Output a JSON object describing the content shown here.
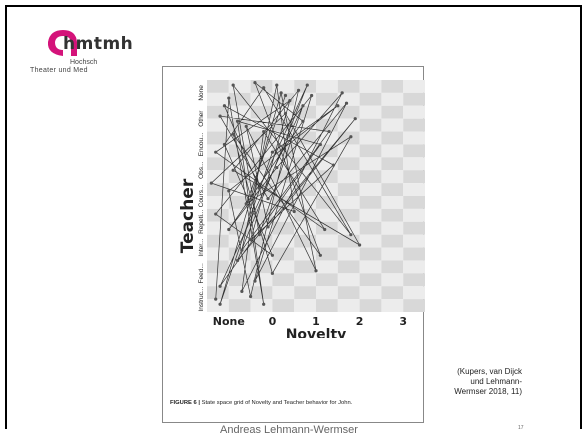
{
  "logo": {
    "text": "hmtmh",
    "line1": "Hochsch",
    "line2": "Theater und Med"
  },
  "figure": {
    "caption_label": "FIGURE 6 |",
    "caption_text": " State space grid of Novelty and Teacher behavior for John."
  },
  "chart_data": {
    "type": "scatter",
    "xlabel": "Novelty",
    "ylabel": "Teacher",
    "x_categories": [
      "None",
      "0",
      "1",
      "2",
      "3"
    ],
    "y_categories": [
      "Instruc...",
      "Feed...",
      "Inter...",
      "Repeti...",
      "Cours...",
      "Obs...",
      "Encou...",
      "Other",
      "None"
    ],
    "grid": "checkerboard",
    "trajectory": [
      [
        0.2,
        0.5
      ],
      [
        0.5,
        8.3
      ],
      [
        1.3,
        0.3
      ],
      [
        0.7,
        7.4
      ],
      [
        2.6,
        6.5
      ],
      [
        0.3,
        1.0
      ],
      [
        2.2,
        8.0
      ],
      [
        1.2,
        3.0
      ],
      [
        0.6,
        8.8
      ],
      [
        3.3,
        3.0
      ],
      [
        1.3,
        8.7
      ],
      [
        0.4,
        6.5
      ],
      [
        1.5,
        2.2
      ],
      [
        0.2,
        3.8
      ],
      [
        2.4,
        8.4
      ],
      [
        1.1,
        1.2
      ],
      [
        3.2,
        8.1
      ],
      [
        1.4,
        4.4
      ],
      [
        0.3,
        7.6
      ],
      [
        2.8,
        7.0
      ],
      [
        0.8,
        2.4
      ],
      [
        1.6,
        8.8
      ],
      [
        2.0,
        3.9
      ],
      [
        0.1,
        5.0
      ],
      [
        1.8,
        7.7
      ],
      [
        3.5,
        2.6
      ],
      [
        0.6,
        5.5
      ],
      [
        2.1,
        8.6
      ],
      [
        1.0,
        0.6
      ],
      [
        0.5,
        4.7
      ],
      [
        3.0,
        8.0
      ],
      [
        1.5,
        6.2
      ],
      [
        0.3,
        0.3
      ],
      [
        1.7,
        8.5
      ],
      [
        2.5,
        1.6
      ],
      [
        0.9,
        7.2
      ],
      [
        1.4,
        3.3
      ],
      [
        3.4,
        7.5
      ],
      [
        0.7,
        2.0
      ],
      [
        2.3,
        8.8
      ],
      [
        1.2,
        4.8
      ],
      [
        0.4,
        8.0
      ],
      [
        2.9,
        5.7
      ],
      [
        1.0,
        2.8
      ],
      [
        1.9,
        8.2
      ],
      [
        0.2,
        6.2
      ],
      [
        2.7,
        3.2
      ],
      [
        1.3,
        7.0
      ],
      [
        0.8,
        0.8
      ],
      [
        3.1,
        8.5
      ],
      [
        1.6,
        5.6
      ],
      [
        0.5,
        3.2
      ],
      [
        2.2,
        7.4
      ],
      [
        1.1,
        8.9
      ],
      [
        2.6,
        2.2
      ],
      [
        0.6,
        6.9
      ],
      [
        1.5,
        1.5
      ],
      [
        3.3,
        6.8
      ],
      [
        0.9,
        4.2
      ],
      [
        1.8,
        8.4
      ]
    ]
  },
  "citation": {
    "line1": "(Kupers, van Dijck",
    "line2": "und Lehmann-",
    "line3": "Wermser 2018, 11)"
  },
  "footer": {
    "author": "Andreas Lehmann-Wermser",
    "page": "17"
  },
  "colors": {
    "logo_accent": "#d4137a",
    "checker_dark": "#d8d8d8",
    "checker_light": "#ececec"
  }
}
